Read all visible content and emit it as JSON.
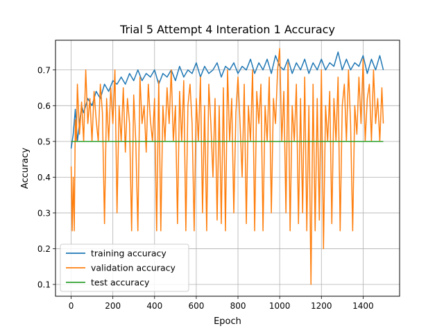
{
  "chart_data": {
    "type": "line",
    "title": "Trial 5 Attempt 4 Interation 1 Accuracy",
    "xlabel": "Epoch",
    "ylabel": "Accuracy",
    "xlim": [
      -75,
      1575
    ],
    "ylim": [
      0.067,
      0.783
    ],
    "xticks": [
      0,
      200,
      400,
      600,
      800,
      1000,
      1200,
      1400
    ],
    "yticks": [
      0.1,
      0.2,
      0.3,
      0.4,
      0.5,
      0.6,
      0.7
    ],
    "grid": true,
    "legend_position": "lower-left",
    "series": [
      {
        "name": "training accuracy",
        "color": "#1f77b4",
        "x": [
          0,
          10,
          20,
          30,
          40,
          50,
          60,
          80,
          100,
          120,
          140,
          160,
          180,
          200,
          220,
          240,
          260,
          280,
          300,
          320,
          340,
          360,
          380,
          400,
          420,
          440,
          460,
          480,
          500,
          520,
          540,
          560,
          580,
          600,
          620,
          640,
          660,
          680,
          700,
          720,
          740,
          760,
          780,
          800,
          820,
          840,
          860,
          880,
          900,
          920,
          940,
          960,
          980,
          1000,
          1020,
          1040,
          1060,
          1080,
          1100,
          1120,
          1140,
          1160,
          1180,
          1200,
          1220,
          1240,
          1260,
          1280,
          1300,
          1320,
          1340,
          1360,
          1380,
          1400,
          1420,
          1440,
          1460,
          1480,
          1497
        ],
        "y": [
          0.48,
          0.52,
          0.59,
          0.5,
          0.55,
          0.6,
          0.58,
          0.62,
          0.6,
          0.64,
          0.62,
          0.66,
          0.64,
          0.67,
          0.66,
          0.68,
          0.66,
          0.69,
          0.67,
          0.7,
          0.67,
          0.69,
          0.68,
          0.7,
          0.66,
          0.69,
          0.68,
          0.7,
          0.67,
          0.71,
          0.68,
          0.7,
          0.69,
          0.72,
          0.68,
          0.71,
          0.69,
          0.7,
          0.72,
          0.68,
          0.71,
          0.7,
          0.72,
          0.69,
          0.71,
          0.7,
          0.73,
          0.69,
          0.72,
          0.7,
          0.73,
          0.69,
          0.74,
          0.71,
          0.7,
          0.73,
          0.69,
          0.72,
          0.7,
          0.73,
          0.69,
          0.72,
          0.7,
          0.73,
          0.7,
          0.72,
          0.71,
          0.75,
          0.7,
          0.73,
          0.7,
          0.72,
          0.71,
          0.74,
          0.69,
          0.73,
          0.7,
          0.74,
          0.7
        ]
      },
      {
        "name": "validation accuracy",
        "color": "#ff7f0e",
        "x": [
          0,
          5,
          10,
          15,
          20,
          25,
          30,
          40,
          50,
          60,
          70,
          80,
          90,
          100,
          110,
          120,
          130,
          140,
          150,
          160,
          170,
          180,
          190,
          200,
          210,
          220,
          230,
          240,
          250,
          260,
          270,
          280,
          290,
          300,
          310,
          320,
          330,
          340,
          350,
          360,
          370,
          380,
          390,
          400,
          410,
          420,
          430,
          440,
          450,
          460,
          470,
          480,
          490,
          500,
          510,
          520,
          530,
          540,
          550,
          560,
          570,
          580,
          590,
          600,
          610,
          620,
          630,
          640,
          650,
          660,
          670,
          680,
          690,
          700,
          710,
          720,
          730,
          740,
          750,
          760,
          770,
          780,
          790,
          800,
          810,
          820,
          830,
          840,
          850,
          860,
          870,
          880,
          890,
          900,
          910,
          920,
          930,
          940,
          950,
          960,
          970,
          980,
          990,
          1000,
          1010,
          1020,
          1030,
          1040,
          1050,
          1060,
          1070,
          1080,
          1090,
          1100,
          1110,
          1120,
          1130,
          1140,
          1150,
          1160,
          1170,
          1180,
          1190,
          1200,
          1210,
          1220,
          1230,
          1240,
          1250,
          1260,
          1270,
          1280,
          1290,
          1300,
          1310,
          1320,
          1330,
          1340,
          1350,
          1360,
          1370,
          1380,
          1390,
          1400,
          1410,
          1420,
          1430,
          1440,
          1450,
          1460,
          1470,
          1480,
          1490,
          1497
        ],
        "y": [
          0.43,
          0.25,
          0.4,
          0.25,
          0.56,
          0.5,
          0.66,
          0.52,
          0.61,
          0.5,
          0.7,
          0.55,
          0.62,
          0.5,
          0.64,
          0.56,
          0.5,
          0.66,
          0.58,
          0.27,
          0.62,
          0.5,
          0.65,
          0.55,
          0.7,
          0.3,
          0.6,
          0.5,
          0.65,
          0.47,
          0.62,
          0.55,
          0.25,
          0.63,
          0.5,
          0.25,
          0.68,
          0.55,
          0.6,
          0.47,
          0.66,
          0.56,
          0.5,
          0.62,
          0.25,
          0.67,
          0.25,
          0.6,
          0.5,
          0.65,
          0.55,
          0.7,
          0.5,
          0.6,
          0.27,
          0.64,
          0.5,
          0.67,
          0.25,
          0.6,
          0.66,
          0.55,
          0.25,
          0.62,
          0.5,
          0.68,
          0.3,
          0.6,
          0.25,
          0.66,
          0.55,
          0.4,
          0.62,
          0.28,
          0.6,
          0.27,
          0.65,
          0.25,
          0.7,
          0.5,
          0.62,
          0.3,
          0.58,
          0.68,
          0.55,
          0.4,
          0.66,
          0.27,
          0.6,
          0.5,
          0.7,
          0.25,
          0.64,
          0.55,
          0.66,
          0.25,
          0.6,
          0.5,
          0.68,
          0.3,
          0.62,
          0.55,
          0.7,
          0.76,
          0.5,
          0.64,
          0.3,
          0.72,
          0.25,
          0.6,
          0.5,
          0.66,
          0.27,
          0.62,
          0.3,
          0.68,
          0.25,
          0.6,
          0.1,
          0.66,
          0.25,
          0.62,
          0.28,
          0.7,
          0.2,
          0.6,
          0.5,
          0.64,
          0.27,
          0.62,
          0.5,
          0.68,
          0.25,
          0.6,
          0.66,
          0.5,
          0.7,
          0.55,
          0.25,
          0.6,
          0.52,
          0.68,
          0.55,
          0.73,
          0.5,
          0.62,
          0.66,
          0.5,
          0.7,
          0.55,
          0.62,
          0.5,
          0.65,
          0.55
        ],
        "y_note": ""
      },
      {
        "name": "test accuracy",
        "color": "#2ca02c",
        "x": [
          0,
          1497
        ],
        "y": [
          0.5,
          0.5
        ]
      }
    ]
  }
}
